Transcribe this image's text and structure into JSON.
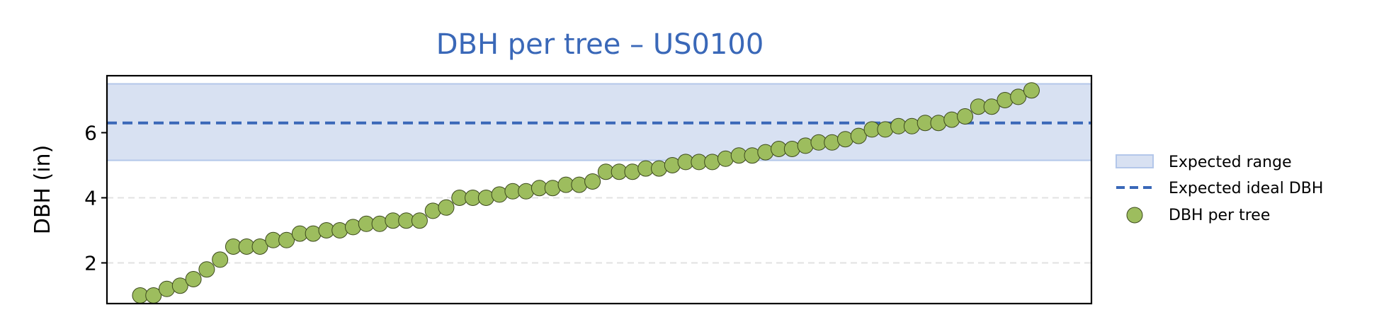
{
  "chart_data": {
    "type": "scatter",
    "title": "DBH per tree – US0100",
    "xlabel": "",
    "ylabel": "DBH (in)",
    "xlim": [
      -2.5,
      71.5
    ],
    "ylim": [
      0.75,
      7.75
    ],
    "yticks": [
      2,
      4,
      6
    ],
    "ytick_labels": [
      "2",
      "4",
      "6"
    ],
    "grid": "horizontal dashed",
    "legend_position": "right",
    "expected_range": [
      5.15,
      7.5
    ],
    "expected_ideal": 6.3,
    "series": [
      {
        "name": "DBH per tree",
        "x": [
          0,
          1,
          2,
          3,
          4,
          5,
          6,
          7,
          8,
          9,
          10,
          11,
          12,
          13,
          14,
          15,
          16,
          17,
          18,
          19,
          20,
          21,
          22,
          23,
          24,
          25,
          26,
          27,
          28,
          29,
          30,
          31,
          32,
          33,
          34,
          35,
          36,
          37,
          38,
          39,
          40,
          41,
          42,
          43,
          44,
          45,
          46,
          47,
          48,
          49,
          50,
          51,
          52,
          53,
          54,
          55,
          56,
          57,
          58,
          59,
          60,
          61,
          62,
          63,
          64,
          65,
          66,
          67
        ],
        "values": [
          1.0,
          1.0,
          1.2,
          1.3,
          1.5,
          1.8,
          2.1,
          2.5,
          2.5,
          2.5,
          2.7,
          2.7,
          2.9,
          2.9,
          3.0,
          3.0,
          3.1,
          3.2,
          3.2,
          3.3,
          3.3,
          3.3,
          3.6,
          3.7,
          4.0,
          4.0,
          4.0,
          4.1,
          4.2,
          4.2,
          4.3,
          4.3,
          4.4,
          4.4,
          4.5,
          4.8,
          4.8,
          4.8,
          4.9,
          4.9,
          5.0,
          5.1,
          5.1,
          5.1,
          5.2,
          5.3,
          5.3,
          5.4,
          5.5,
          5.5,
          5.6,
          5.7,
          5.7,
          5.8,
          5.9,
          6.1,
          6.1,
          6.2,
          6.2,
          6.3,
          6.3,
          6.4,
          6.5,
          6.8,
          6.8,
          7.0,
          7.1,
          7.3
        ]
      }
    ],
    "legend": [
      {
        "label": "Expected range",
        "kind": "patch"
      },
      {
        "label": "Expected ideal DBH",
        "kind": "dashed-line"
      },
      {
        "label": "DBH per tree",
        "kind": "marker"
      }
    ],
    "colors": {
      "title": "#3a68b8",
      "range_fill": "#d8e1f2",
      "range_edge": "#b3c7ea",
      "ideal_line": "#3a68b8",
      "marker_fill": "#9dbd5e",
      "marker_edge": "#3d4a1e",
      "grid": "#e2e2e2",
      "axis": "#000000"
    }
  }
}
